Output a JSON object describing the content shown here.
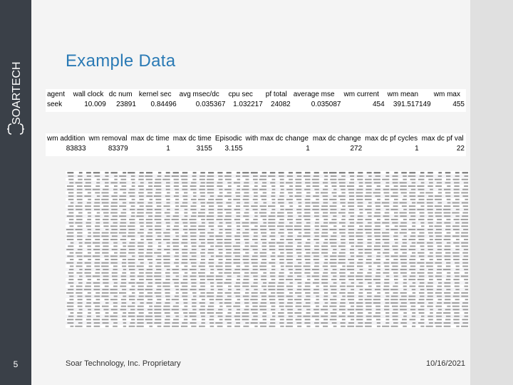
{
  "brand": {
    "logo_text": "SOARTECH"
  },
  "slide": {
    "number": "5",
    "title": "Example Data"
  },
  "table1": {
    "headers": [
      "agent",
      "wall clock",
      "dc num",
      "kernel sec",
      "avg msec/dc",
      "cpu sec",
      "pf total",
      "average mse",
      "wm current",
      "wm mean",
      "wm max"
    ],
    "row": [
      "seek",
      "10.009",
      "23891",
      "0.84496",
      "0.035367",
      "1.032217",
      "24082",
      "0.035087",
      "454",
      "391.517149",
      "455"
    ]
  },
  "table2": {
    "headers": [
      "wm addition",
      "wm removal",
      "max dc time",
      "max dc time",
      "Episodic",
      "with max dc change",
      "max dc change",
      "max dc pf cycles",
      "max dc pf val"
    ],
    "row": [
      "83833",
      "83379",
      "1",
      "3155",
      "3.155",
      "1",
      "272",
      "1",
      "22"
    ]
  },
  "footer": {
    "company": "Soar Technology, Inc. Proprietary",
    "date": "10/16/2021"
  },
  "colors": {
    "sidebar": "#3a4048",
    "title": "#2a7ab5",
    "highlight": "#e8e8ee"
  }
}
